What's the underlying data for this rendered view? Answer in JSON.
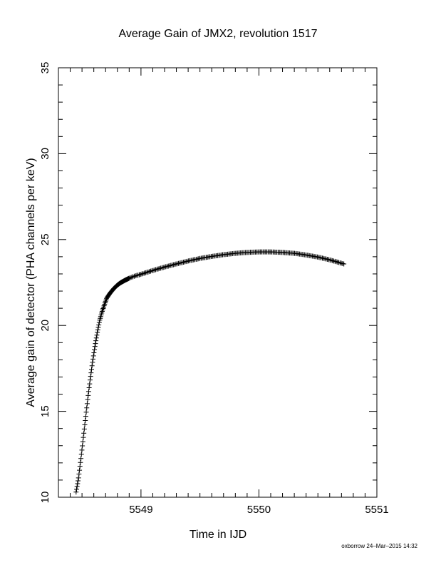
{
  "chart_data": {
    "type": "scatter",
    "title": "Average Gain of JMX2, revolution 1517",
    "xlabel": "Time in IJD",
    "ylabel": "Average gain of detector (PHA channels per keV)",
    "xlim": [
      5548.3,
      5551
    ],
    "ylim": [
      10,
      35
    ],
    "xticks": [
      "5549",
      "5550",
      "5551"
    ],
    "yticks": [
      "10",
      "15",
      "20",
      "25",
      "30",
      "35"
    ],
    "marker": "plus",
    "grid": false,
    "series": [
      {
        "x": [
          5548.45,
          5548.47,
          5548.49,
          5548.51,
          5548.53,
          5548.55,
          5548.57,
          5548.59,
          5548.61,
          5548.63,
          5548.65,
          5548.67,
          5548.69,
          5548.71,
          5548.74,
          5548.77,
          5548.8,
          5548.83,
          5548.87,
          5548.91,
          5548.95,
          5549.0,
          5549.1,
          5549.2,
          5549.3,
          5549.4,
          5549.5,
          5549.6,
          5549.7,
          5549.8,
          5549.9,
          5550.0,
          5550.1,
          5550.2,
          5550.3,
          5550.4,
          5550.5,
          5550.6,
          5550.72
        ],
        "values": [
          10.3,
          11.1,
          12.2,
          13.4,
          14.6,
          15.8,
          16.9,
          17.9,
          18.8,
          19.6,
          20.3,
          20.8,
          21.2,
          21.6,
          21.9,
          22.15,
          22.35,
          22.5,
          22.65,
          22.78,
          22.88,
          22.98,
          23.2,
          23.4,
          23.58,
          23.75,
          23.9,
          24.02,
          24.12,
          24.2,
          24.25,
          24.28,
          24.28,
          24.25,
          24.2,
          24.1,
          23.98,
          23.82,
          23.58
        ]
      }
    ]
  },
  "footer": "oxborrow 24–Mar–2015 14:32"
}
